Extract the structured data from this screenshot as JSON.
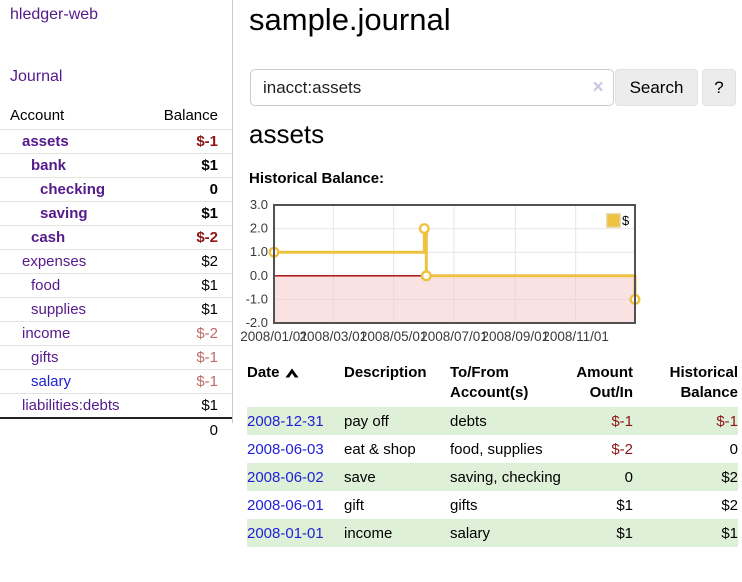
{
  "brand": "hledger-web",
  "nav": {
    "journal": "Journal"
  },
  "sidebar": {
    "account_header": "Account",
    "balance_header": "Balance",
    "accounts": [
      {
        "name": "assets",
        "balance": "$-1",
        "name_classes": "lvl1 inacct",
        "balance_classes": "inacct neg-strong"
      },
      {
        "name": "bank",
        "balance": "$1",
        "name_classes": "lvl2 inacct",
        "balance_classes": "inacct"
      },
      {
        "name": "checking",
        "balance": "0",
        "name_classes": "lvl3 inacct",
        "balance_classes": "inacct"
      },
      {
        "name": "saving",
        "balance": "$1",
        "name_classes": "lvl3 inacct",
        "balance_classes": "inacct"
      },
      {
        "name": "cash",
        "balance": "$-2",
        "name_classes": "lvl2 inacct",
        "balance_classes": "inacct neg-strong"
      },
      {
        "name": "expenses",
        "balance": "$2",
        "name_classes": "lvl1",
        "balance_classes": ""
      },
      {
        "name": "food",
        "balance": "$1",
        "name_classes": "lvl2",
        "balance_classes": ""
      },
      {
        "name": "supplies",
        "balance": "$1",
        "name_classes": "lvl2",
        "balance_classes": ""
      },
      {
        "name": "income",
        "balance": "$-2",
        "name_classes": "lvl1",
        "balance_classes": "neg-soft"
      },
      {
        "name": "gifts",
        "balance": "$-1",
        "name_classes": "lvl2",
        "balance_classes": "neg-soft"
      },
      {
        "name": "salary",
        "balance": "$-1",
        "name_classes": "lvl2 fresh",
        "balance_classes": "neg-soft"
      },
      {
        "name": "liabilities:debts",
        "balance": "$1",
        "name_classes": "lvl1",
        "balance_classes": ""
      }
    ],
    "total": "0"
  },
  "main": {
    "title": "sample.journal",
    "search": {
      "value": "inacct:assets",
      "clear_icon": "×",
      "button_label": "Search",
      "help_label": "?"
    },
    "account_heading": "assets",
    "section_label": "Historical Balance:"
  },
  "chart_data": {
    "type": "line",
    "title": "Historical Balance:",
    "series": [
      {
        "name": "$",
        "step": true,
        "points": [
          [
            "2008-01-01",
            1
          ],
          [
            "2008-06-01",
            2
          ],
          [
            "2008-06-03",
            0
          ],
          [
            "2008-12-31",
            -1
          ]
        ]
      }
    ],
    "xlim": [
      "2008-01-01",
      "2008-12-31"
    ],
    "ylim": [
      -2,
      3
    ],
    "yticks": [
      "3.0",
      "2.0",
      "1.0",
      "0.0",
      "-1.0",
      "-2.0"
    ],
    "xticks": [
      "2008/01/01",
      "2008/03/01",
      "2008/05/01",
      "2008/07/01",
      "2008/09/01",
      "2008/11/01"
    ],
    "legend": {
      "position": "top-right",
      "label": "$"
    },
    "grid": true,
    "colors": {
      "series": "#edc240",
      "point_fill": "#ffffff",
      "grid": "#e6e6e6",
      "negative_region": "#f6caca",
      "zero_line": "#a40000",
      "plot_border": "#515151",
      "tick_text": "#3a3a3a"
    }
  },
  "table": {
    "headers": [
      "Date",
      "Description",
      "To/From Account(s)",
      "Amount Out/In",
      "Historical Balance"
    ],
    "sort": {
      "column": "Date",
      "direction": "ascending"
    },
    "rows": [
      {
        "date": "2008-12-31",
        "description": "pay off",
        "accounts": "debts",
        "amount": "$-1",
        "balance": "$-1",
        "row_classes": "shaded",
        "amount_classes": "neg-strong",
        "balance_classes": "neg-strong"
      },
      {
        "date": "2008-06-03",
        "description": "eat & shop",
        "accounts": "food, supplies",
        "amount": "$-2",
        "balance": "0",
        "row_classes": "",
        "amount_classes": "neg-strong",
        "balance_classes": ""
      },
      {
        "date": "2008-06-02",
        "description": "save",
        "accounts": "saving, checking",
        "amount": "0",
        "balance": "$2",
        "row_classes": "shaded",
        "amount_classes": "",
        "balance_classes": ""
      },
      {
        "date": "2008-06-01",
        "description": "gift",
        "accounts": "gifts",
        "amount": "$1",
        "balance": "$2",
        "row_classes": "",
        "amount_classes": "",
        "balance_classes": ""
      },
      {
        "date": "2008-01-01",
        "description": "income",
        "accounts": "salary",
        "amount": "$1",
        "balance": "$1",
        "row_classes": "shaded",
        "amount_classes": "",
        "balance_classes": ""
      }
    ]
  }
}
